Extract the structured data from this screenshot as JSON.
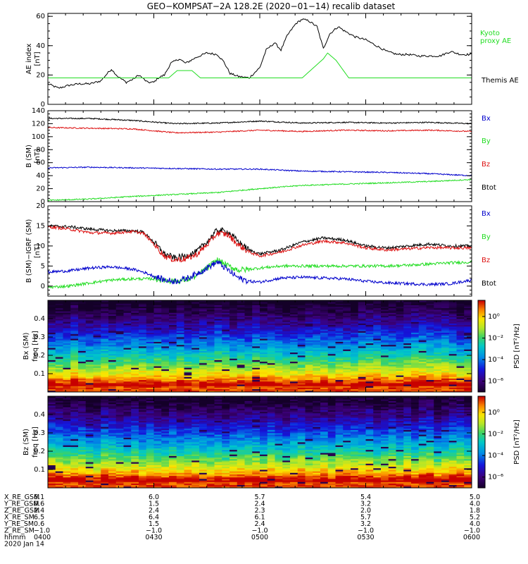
{
  "title": "GEO−KOMPSAT−2A 128.2E (2020−01−14) recalib dataset",
  "colors": {
    "black": "#000000",
    "green": "#22dd22",
    "red": "#dd1111",
    "blue": "#0000cc"
  },
  "chart_data": [
    {
      "type": "line",
      "name": "ae",
      "ylabel_lines": [
        "AE index",
        "[nT]"
      ],
      "ylim": [
        0,
        62
      ],
      "yticks": [
        0,
        20,
        40,
        60
      ],
      "x_hours": [
        4.0,
        6.0
      ],
      "legend": [
        {
          "label_lines": [
            "Kyoto",
            "proxy AE"
          ],
          "color": "#22dd22"
        },
        {
          "label_lines": [
            "Themis AE"
          ],
          "color": "#000000"
        }
      ],
      "series": [
        {
          "key": "themis",
          "color": "#000000",
          "x": [
            4.0,
            4.05,
            4.1,
            4.15,
            4.2,
            4.25,
            4.28,
            4.3,
            4.33,
            4.37,
            4.4,
            4.43,
            4.47,
            4.5,
            4.52,
            4.55,
            4.58,
            4.62,
            4.65,
            4.7,
            4.75,
            4.8,
            4.83,
            4.86,
            4.9,
            4.95,
            5.0,
            5.03,
            5.07,
            5.1,
            5.13,
            5.17,
            5.2,
            5.23,
            5.27,
            5.3,
            5.33,
            5.37,
            5.4,
            5.45,
            5.5,
            5.55,
            5.6,
            5.65,
            5.7,
            5.75,
            5.8,
            5.85,
            5.9,
            5.95,
            6.0
          ],
          "y": [
            14,
            11,
            13,
            14,
            14,
            16,
            21,
            24,
            19,
            15,
            17,
            20,
            15,
            15,
            18,
            20,
            28,
            31,
            28,
            32,
            35,
            34,
            29,
            21,
            19,
            18,
            25,
            37,
            42,
            37,
            47,
            55,
            58,
            57,
            53,
            38,
            48,
            53,
            50,
            46,
            44,
            40,
            36,
            34,
            34,
            33,
            33,
            33,
            36,
            34,
            34
          ]
        },
        {
          "key": "kyoto",
          "color": "#22dd22",
          "x": [
            4.0,
            4.57,
            4.61,
            4.68,
            4.72,
            5.2,
            5.3,
            5.32,
            5.36,
            5.42,
            6.0
          ],
          "y": [
            18,
            18,
            23,
            23,
            18,
            18,
            31,
            35,
            30,
            18,
            18
          ]
        }
      ]
    },
    {
      "type": "line",
      "name": "b-sm",
      "ylabel_lines": [
        "B (SM)",
        "[nT]"
      ],
      "ylim": [
        0,
        140
      ],
      "yticks": [
        0,
        20,
        40,
        60,
        80,
        100,
        120,
        140
      ],
      "x_hours": [
        4.0,
        6.0
      ],
      "legend": [
        {
          "label_lines": [
            "Bx"
          ],
          "color": "#0000cc"
        },
        {
          "label_lines": [
            "By"
          ],
          "color": "#22dd22"
        },
        {
          "label_lines": [
            "Bz"
          ],
          "color": "#dd1111"
        },
        {
          "label_lines": [
            "Btot"
          ],
          "color": "#000000"
        }
      ],
      "series": [
        {
          "key": "btot",
          "color": "#000000",
          "x": [
            4.0,
            4.2,
            4.4,
            4.6,
            4.8,
            5.0,
            5.2,
            5.4,
            5.6,
            5.8,
            6.0
          ],
          "y": [
            128,
            128,
            125,
            120,
            121,
            124,
            121,
            122,
            121,
            122,
            120
          ]
        },
        {
          "key": "bz",
          "color": "#dd1111",
          "x": [
            4.0,
            4.2,
            4.4,
            4.6,
            4.8,
            5.0,
            5.2,
            5.4,
            5.6,
            5.8,
            6.0
          ],
          "y": [
            114,
            113,
            112,
            106,
            107,
            110,
            108,
            110,
            109,
            110,
            108
          ]
        },
        {
          "key": "bx",
          "color": "#0000cc",
          "x": [
            4.0,
            4.2,
            4.4,
            4.6,
            4.8,
            5.0,
            5.2,
            5.4,
            5.6,
            5.8,
            6.0
          ],
          "y": [
            52,
            53,
            52,
            51,
            50,
            50,
            47,
            46,
            45,
            43,
            40
          ]
        },
        {
          "key": "by",
          "color": "#22dd22",
          "x": [
            4.0,
            4.2,
            4.4,
            4.6,
            4.8,
            5.0,
            5.2,
            5.4,
            5.6,
            5.8,
            6.0
          ],
          "y": [
            2,
            4,
            8,
            11,
            14,
            20,
            25,
            27,
            29,
            31,
            34
          ]
        }
      ]
    },
    {
      "type": "line",
      "name": "b-minus-igrf",
      "ylabel_lines": [
        "B (SM)−IGRF (SM)",
        "[nT]"
      ],
      "ylim": [
        -2.5,
        20
      ],
      "yticks": [
        0,
        5,
        10,
        15,
        20
      ],
      "x_hours": [
        4.0,
        6.0
      ],
      "legend": [
        {
          "label_lines": [
            "Bx"
          ],
          "color": "#0000cc"
        },
        {
          "label_lines": [
            "By"
          ],
          "color": "#22dd22"
        },
        {
          "label_lines": [
            "Bz"
          ],
          "color": "#dd1111"
        },
        {
          "label_lines": [
            "Btot"
          ],
          "color": "#000000"
        }
      ],
      "series": [
        {
          "key": "btot",
          "color": "#000000",
          "x": [
            4.0,
            4.1,
            4.2,
            4.3,
            4.4,
            4.45,
            4.5,
            4.55,
            4.6,
            4.65,
            4.7,
            4.75,
            4.8,
            4.85,
            4.9,
            4.95,
            5.0,
            5.1,
            5.2,
            5.3,
            5.4,
            5.5,
            5.6,
            5.7,
            5.8,
            5.9,
            6.0
          ],
          "y": [
            15,
            14.8,
            14.2,
            13.8,
            13.8,
            13.5,
            11,
            8,
            7,
            7.5,
            8.5,
            11,
            14,
            13.5,
            11,
            9,
            8,
            9,
            11,
            12,
            11.5,
            10,
            9.5,
            10,
            10.5,
            10,
            10
          ]
        },
        {
          "key": "bz",
          "color": "#dd1111",
          "x": [
            4.0,
            4.1,
            4.2,
            4.3,
            4.4,
            4.45,
            4.5,
            4.55,
            4.6,
            4.65,
            4.7,
            4.75,
            4.8,
            4.85,
            4.9,
            4.95,
            5.0,
            5.1,
            5.2,
            5.3,
            5.4,
            5.5,
            5.6,
            5.7,
            5.8,
            5.9,
            6.0
          ],
          "y": [
            14.8,
            14.2,
            13.3,
            13.2,
            13.6,
            13.2,
            10.5,
            7.5,
            6.5,
            6.8,
            7.8,
            10.2,
            13.2,
            12.8,
            10.2,
            8.5,
            7.5,
            8.5,
            10.2,
            11.2,
            10.8,
            9.5,
            9,
            9.3,
            9.6,
            9.5,
            9.5
          ]
        },
        {
          "key": "by",
          "color": "#22dd22",
          "x": [
            4.0,
            4.1,
            4.2,
            4.3,
            4.4,
            4.5,
            4.55,
            4.6,
            4.65,
            4.7,
            4.75,
            4.8,
            4.85,
            4.9,
            4.95,
            5.0,
            5.1,
            5.2,
            5.3,
            5.4,
            5.5,
            5.6,
            5.7,
            5.8,
            5.9,
            6.0
          ],
          "y": [
            -0.3,
            0,
            0.8,
            1.5,
            1.8,
            1.8,
            1.5,
            1.2,
            1.5,
            2.5,
            4.5,
            6.5,
            5,
            4,
            4.2,
            4.5,
            5,
            5,
            5,
            5,
            5,
            5,
            5.2,
            5.5,
            5.8,
            6
          ]
        },
        {
          "key": "bx",
          "color": "#0000cc",
          "x": [
            4.0,
            4.1,
            4.2,
            4.3,
            4.4,
            4.45,
            4.5,
            4.55,
            4.6,
            4.65,
            4.7,
            4.75,
            4.8,
            4.85,
            4.9,
            4.95,
            5.0,
            5.1,
            5.2,
            5.3,
            5.4,
            5.5,
            5.6,
            5.7,
            5.8,
            5.9,
            6.0
          ],
          "y": [
            3.5,
            3.8,
            4.5,
            4.8,
            4.2,
            3.5,
            2.5,
            1.5,
            1.2,
            1.8,
            3,
            4.5,
            6,
            4,
            2,
            1.2,
            1,
            2,
            2.2,
            2,
            1.8,
            1.2,
            0.8,
            0.6,
            0.4,
            0.6,
            1.5
          ]
        }
      ]
    },
    {
      "type": "heatmap",
      "name": "bx-spectrogram",
      "ylabel_lines": [
        "Bx (SM)",
        "freq [Hz]"
      ],
      "ylim": [
        0,
        0.5
      ],
      "yticks": [
        0.1,
        0.2,
        0.3,
        0.4
      ],
      "colorbar_label": "PSD [nT²/Hz]",
      "colorbar_ticks": [
        "10⁰",
        "10⁻²",
        "10⁻⁴",
        "10⁻⁶"
      ],
      "colorbar_tick_values": [
        0,
        -2,
        -4,
        -6
      ],
      "colorbar_range": [
        -7,
        1.5
      ]
    },
    {
      "type": "heatmap",
      "name": "bz-spectrogram",
      "ylabel_lines": [
        "Bz (SM)",
        "freq [Hz]"
      ],
      "ylim": [
        0,
        0.5
      ],
      "yticks": [
        0.1,
        0.2,
        0.3,
        0.4
      ],
      "colorbar_label": "PSD [nT²/Hz]",
      "colorbar_ticks": [
        "10⁰",
        "10⁻²",
        "10⁻⁴",
        "10⁻⁶"
      ],
      "colorbar_tick_values": [
        0,
        -2,
        -4,
        -6
      ],
      "colorbar_range": [
        -7,
        1.5
      ]
    }
  ],
  "ephemeris": {
    "row_labels": [
      "X_RE_GSM",
      "Y_RE_GSM",
      "Z_RE_GSM",
      "X_RE_SM",
      "Y_RE_SM",
      "Z_RE_SM",
      "hhmm"
    ],
    "columns": [
      {
        "hour": 4.0,
        "values": [
          "6.1",
          "0.6",
          "2.4",
          "6.5",
          "0.6",
          "−1.0",
          "0400"
        ]
      },
      {
        "hour": 4.5,
        "values": [
          "6.0",
          "1.5",
          "2.4",
          "6.4",
          "1.5",
          "−1.0",
          "0430"
        ]
      },
      {
        "hour": 5.0,
        "values": [
          "5.7",
          "2.4",
          "2.3",
          "6.1",
          "2.4",
          "−1.0",
          "0500"
        ]
      },
      {
        "hour": 5.5,
        "values": [
          "5.4",
          "3.2",
          "2.0",
          "5.7",
          "3.2",
          "−1.0",
          "0530"
        ]
      },
      {
        "hour": 6.0,
        "values": [
          "5.0",
          "4.0",
          "1.8",
          "5.2",
          "4.0",
          "−1.0",
          "0600"
        ]
      }
    ],
    "date": "2020 Jan 14"
  }
}
